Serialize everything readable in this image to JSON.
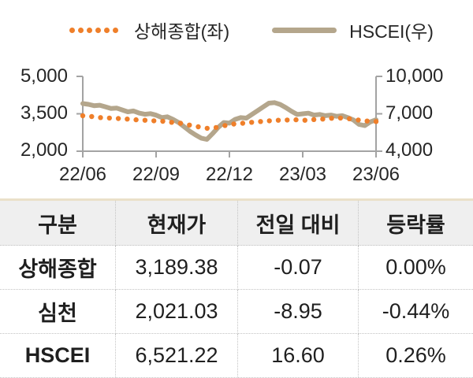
{
  "colors": {
    "shanghai": "#EF7F2A",
    "hscei": "#B4A68C",
    "axis": "#A3A3A3",
    "table_top_border": "#EAE0C9",
    "table_header_bg": "#EFEFEF"
  },
  "legend": {
    "shanghai_label": "상해종합(좌)",
    "hscei_label": "HSCEI(우)"
  },
  "chart_data": {
    "type": "line",
    "title": "",
    "xlabel": "",
    "ylabel_left": "",
    "ylabel_right": "",
    "grid": false,
    "legend_position": "top",
    "x_tick_labels": [
      "22/06",
      "22/09",
      "22/12",
      "23/03",
      "23/06"
    ],
    "y_left": {
      "ticks": [
        "5,000",
        "3,500",
        "2,000"
      ],
      "range": [
        2000,
        5000
      ]
    },
    "y_right": {
      "ticks": [
        "10,000",
        "7,000",
        "4,000"
      ],
      "range": [
        4000,
        10000
      ]
    },
    "series": [
      {
        "name": "상해종합(좌)",
        "axis": "left",
        "style": "dotted",
        "color": "#EF7F2A",
        "values": [
          3420,
          3390,
          3350,
          3330,
          3310,
          3290,
          3260,
          3240,
          3220,
          3200,
          3160,
          3120,
          3050,
          2980,
          2920,
          2950,
          3030,
          3090,
          3120,
          3160,
          3190,
          3220,
          3240,
          3250,
          3260,
          3240,
          3270,
          3290,
          3320,
          3330,
          3300,
          3250,
          3210,
          3189
        ]
      },
      {
        "name": "HSCEI(우)",
        "axis": "right",
        "style": "solid",
        "color": "#B4A68C",
        "values": [
          7820,
          7760,
          7650,
          7690,
          7560,
          7430,
          7460,
          7310,
          7160,
          7230,
          7060,
          6960,
          7010,
          6890,
          6700,
          6760,
          6550,
          6300,
          5950,
          5600,
          5300,
          5050,
          4950,
          5400,
          5900,
          6300,
          6250,
          6550,
          6700,
          6650,
          6950,
          7250,
          7550,
          7850,
          7900,
          7750,
          7500,
          7200,
          6950,
          7000,
          7050,
          6900,
          6950,
          6850,
          6900,
          6800,
          6850,
          6700,
          6500,
          6150,
          6050,
          6350,
          6521
        ]
      }
    ]
  },
  "table": {
    "headers": [
      "구분",
      "현재가",
      "전일 대비",
      "등락률"
    ],
    "rows": [
      [
        "상해종합",
        "3,189.38",
        "-0.07",
        "0.00%"
      ],
      [
        "심천",
        "2,021.03",
        "-8.95",
        "-0.44%"
      ],
      [
        "HSCEI",
        "6,521.22",
        "16.60",
        "0.26%"
      ]
    ]
  }
}
